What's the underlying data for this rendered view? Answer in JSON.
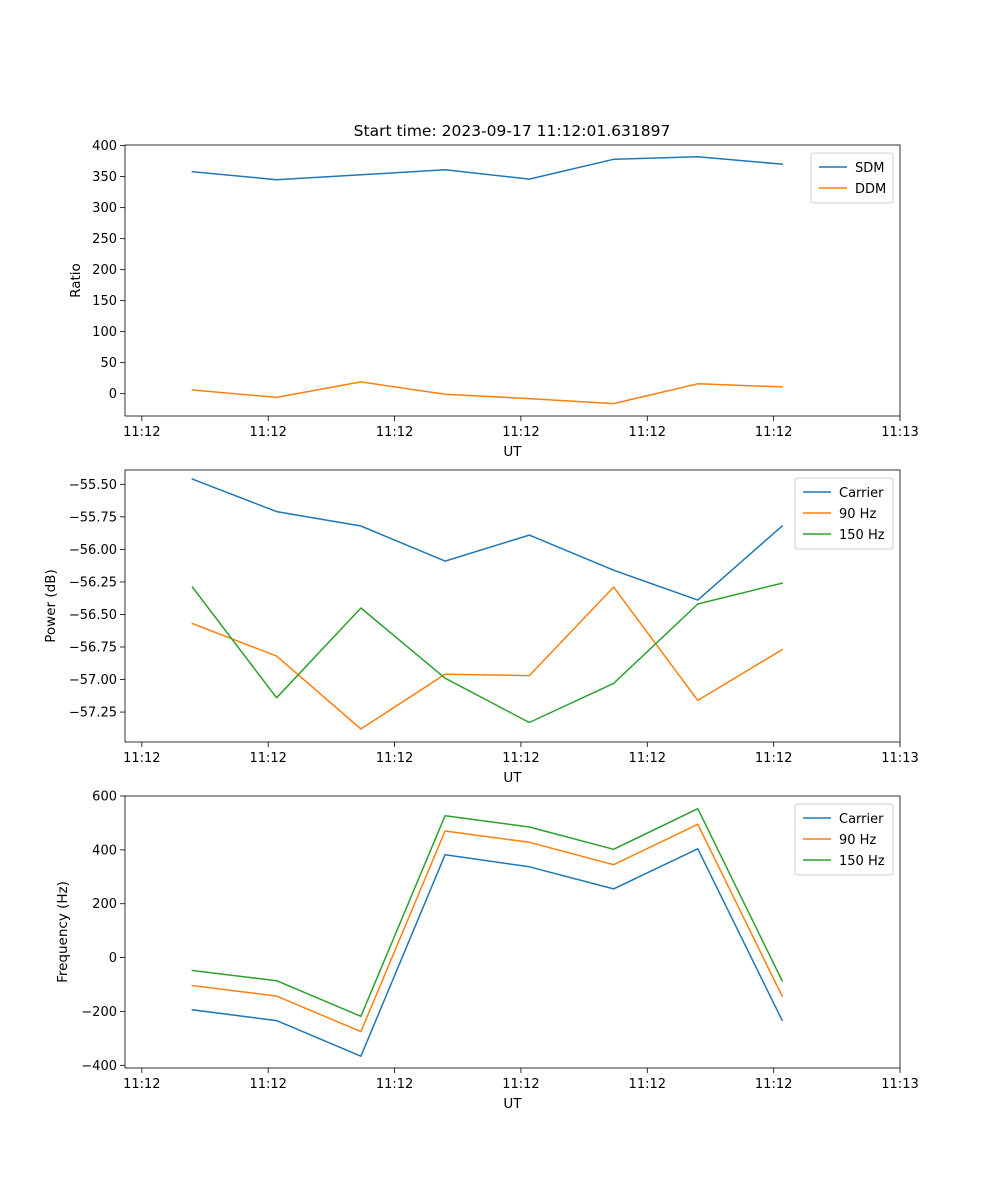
{
  "figure_title": "Start time: 2023-09-17 11:12:01.631897",
  "colors": {
    "blue": "#1f77b4",
    "orange": "#ff7f0e",
    "green": "#2ca02c"
  },
  "chart_data": [
    {
      "type": "line",
      "title": "Start time: 2023-09-17 11:12:01.631897",
      "xlabel": "UT",
      "ylabel": "Ratio",
      "x": [
        1,
        2,
        3,
        4,
        5,
        6,
        7,
        8
      ],
      "xlim": [
        0.2,
        9.4
      ],
      "xticks": [
        0.4,
        1.9,
        3.4,
        4.9,
        6.4,
        7.9,
        9.4
      ],
      "xtick_labels": [
        "11:12",
        "11:12",
        "11:12",
        "11:12",
        "11:12",
        "11:12",
        "11:13"
      ],
      "ylim": [
        -36,
        401
      ],
      "yticks": [
        0,
        50,
        100,
        150,
        200,
        250,
        300,
        350,
        400
      ],
      "ytick_labels": [
        "0",
        "50",
        "100",
        "150",
        "200",
        "250",
        "300",
        "350",
        "400"
      ],
      "legend_position": "top-right",
      "series": [
        {
          "name": "SDM",
          "color": "#1f77b4",
          "values": [
            358,
            345,
            353,
            361,
            346,
            378,
            382,
            370
          ]
        },
        {
          "name": "DDM",
          "color": "#ff7f0e",
          "values": [
            6,
            -6,
            19,
            -1,
            -8,
            -16,
            16,
            11
          ]
        }
      ]
    },
    {
      "type": "line",
      "xlabel": "UT",
      "ylabel": "Power (dB)",
      "x": [
        1,
        2,
        3,
        4,
        5,
        6,
        7,
        8
      ],
      "xlim": [
        0.2,
        9.4
      ],
      "xticks": [
        0.4,
        1.9,
        3.4,
        4.9,
        6.4,
        7.9,
        9.4
      ],
      "xtick_labels": [
        "11:12",
        "11:12",
        "11:12",
        "11:12",
        "11:12",
        "11:12",
        "11:13"
      ],
      "ylim": [
        -57.48,
        -55.39
      ],
      "yticks": [
        -57.25,
        -57.0,
        -56.75,
        -56.5,
        -56.25,
        -56.0,
        -55.75,
        -55.5
      ],
      "ytick_labels": [
        "−57.25",
        "−57.00",
        "−56.75",
        "−56.50",
        "−56.25",
        "−56.00",
        "−55.75",
        "−55.50"
      ],
      "legend_position": "top-right",
      "series": [
        {
          "name": "Carrier",
          "color": "#1f77b4",
          "values": [
            -55.46,
            -55.71,
            -55.82,
            -56.09,
            -55.89,
            -56.16,
            -56.39,
            -55.82
          ]
        },
        {
          "name": "90 Hz",
          "color": "#ff7f0e",
          "values": [
            -56.57,
            -56.82,
            -57.38,
            -56.96,
            -56.97,
            -56.29,
            -57.16,
            -56.77
          ]
        },
        {
          "name": "150 Hz",
          "color": "#2ca02c",
          "values": [
            -56.29,
            -57.14,
            -56.45,
            -56.99,
            -57.33,
            -57.03,
            -56.42,
            -56.26
          ]
        }
      ]
    },
    {
      "type": "line",
      "xlabel": "UT",
      "ylabel": "Frequency (Hz)",
      "x": [
        1,
        2,
        3,
        4,
        5,
        6,
        7,
        8
      ],
      "xlim": [
        0.2,
        9.4
      ],
      "xticks": [
        0.4,
        1.9,
        3.4,
        4.9,
        6.4,
        7.9,
        9.4
      ],
      "xtick_labels": [
        "11:12",
        "11:12",
        "11:12",
        "11:12",
        "11:12",
        "11:12",
        "11:13"
      ],
      "ylim": [
        -410,
        600
      ],
      "yticks": [
        -400,
        -200,
        0,
        200,
        400,
        600
      ],
      "ytick_labels": [
        "−400",
        "−200",
        "0",
        "200",
        "400",
        "600"
      ],
      "legend_position": "top-right",
      "series": [
        {
          "name": "Carrier",
          "color": "#1f77b4",
          "values": [
            -194,
            -234,
            -366,
            382,
            337,
            255,
            404,
            -233
          ]
        },
        {
          "name": "90 Hz",
          "color": "#ff7f0e",
          "values": [
            -104,
            -143,
            -275,
            470,
            428,
            345,
            495,
            -143
          ]
        },
        {
          "name": "150 Hz",
          "color": "#2ca02c",
          "values": [
            -48,
            -86,
            -218,
            527,
            485,
            402,
            553,
            -86
          ]
        }
      ]
    }
  ]
}
